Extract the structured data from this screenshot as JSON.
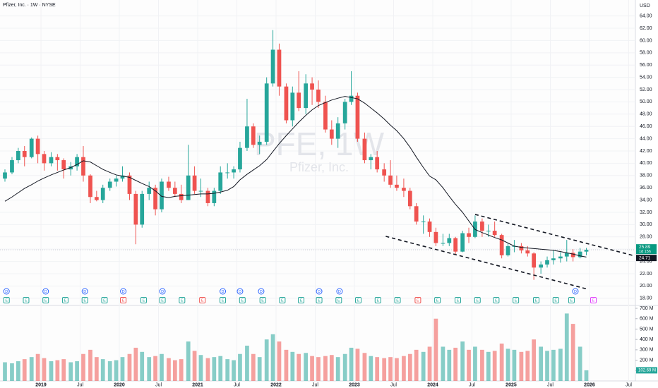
{
  "chart_data": {
    "type": "candlestick",
    "title": "Pfizer, Inc. · 1W · NYSE",
    "watermark": "PFE, 1W",
    "watermark_subtitle": "Pfizer, Inc.",
    "currency": "USD",
    "countdown": "1d 15h",
    "colors": {
      "up": "#26a69a",
      "down": "#ef5350",
      "ma": "#131722",
      "trendline": "#131722"
    },
    "grid": true,
    "xlim": [
      2018.477,
      2026.586
    ],
    "xticks": [
      {
        "value": 2019.0,
        "label": "2019"
      },
      {
        "value": 2019.5,
        "label": "Jul"
      },
      {
        "value": 2020.0,
        "label": "2020"
      },
      {
        "value": 2020.5,
        "label": "Jul"
      },
      {
        "value": 2021.0,
        "label": "2021"
      },
      {
        "value": 2021.5,
        "label": "Jul"
      },
      {
        "value": 2022.0,
        "label": "2022"
      },
      {
        "value": 2022.5,
        "label": "Jul"
      },
      {
        "value": 2023.0,
        "label": "2023"
      },
      {
        "value": 2023.5,
        "label": "Jul"
      },
      {
        "value": 2024.0,
        "label": "2024"
      },
      {
        "value": 2024.5,
        "label": "Jul"
      },
      {
        "value": 2025.0,
        "label": "2025"
      },
      {
        "value": 2025.5,
        "label": "Jul"
      },
      {
        "value": 2026.0,
        "label": "2026"
      },
      {
        "value": 2026.5,
        "label": "Jul"
      }
    ],
    "ylim": [
      16.94,
      66.6
    ],
    "yticks": [
      {
        "value": 18,
        "label": "18.00"
      },
      {
        "value": 20,
        "label": "20.00"
      },
      {
        "value": 22,
        "label": "22.00"
      },
      {
        "value": 24,
        "label": "24.00"
      },
      {
        "value": 26,
        "label": "26.00"
      },
      {
        "value": 28,
        "label": "28.00"
      },
      {
        "value": 30,
        "label": "30.00"
      },
      {
        "value": 32,
        "label": "32.00"
      },
      {
        "value": 34,
        "label": "34.00"
      },
      {
        "value": 36,
        "label": "36.00"
      },
      {
        "value": 38,
        "label": "38.00"
      },
      {
        "value": 40,
        "label": "40.00"
      },
      {
        "value": 42,
        "label": "42.00"
      },
      {
        "value": 44,
        "label": "44.00"
      },
      {
        "value": 46,
        "label": "46.00"
      },
      {
        "value": 48,
        "label": "48.00"
      },
      {
        "value": 50,
        "label": "50.00"
      },
      {
        "value": 52,
        "label": "52.00"
      },
      {
        "value": 54,
        "label": "54.00"
      },
      {
        "value": 56,
        "label": "56.00"
      },
      {
        "value": 58,
        "label": "58.00"
      },
      {
        "value": 60,
        "label": "60.00"
      },
      {
        "value": 62,
        "label": "62.00"
      },
      {
        "value": 64,
        "label": "64.00"
      }
    ],
    "x": [
      2018.54,
      2018.63,
      2018.71,
      2018.79,
      2018.88,
      2018.96,
      2019.04,
      2019.13,
      2019.21,
      2019.29,
      2019.38,
      2019.46,
      2019.54,
      2019.63,
      2019.71,
      2019.79,
      2019.88,
      2019.96,
      2020.04,
      2020.13,
      2020.21,
      2020.29,
      2020.38,
      2020.46,
      2020.54,
      2020.63,
      2020.71,
      2020.79,
      2020.88,
      2020.96,
      2021.04,
      2021.13,
      2021.21,
      2021.29,
      2021.38,
      2021.46,
      2021.54,
      2021.63,
      2021.71,
      2021.79,
      2021.88,
      2021.96,
      2022.04,
      2022.13,
      2022.21,
      2022.29,
      2022.38,
      2022.46,
      2022.54,
      2022.63,
      2022.71,
      2022.79,
      2022.88,
      2022.96,
      2023.04,
      2023.13,
      2023.21,
      2023.29,
      2023.38,
      2023.46,
      2023.54,
      2023.63,
      2023.71,
      2023.79,
      2023.88,
      2023.96,
      2024.04,
      2024.13,
      2024.21,
      2024.29,
      2024.38,
      2024.46,
      2024.54,
      2024.63,
      2024.71,
      2024.79,
      2024.88,
      2024.96,
      2025.04,
      2025.13,
      2025.21,
      2025.29,
      2025.38,
      2025.46,
      2025.54,
      2025.63,
      2025.71,
      2025.79,
      2025.88,
      2025.96
    ],
    "open": [
      37.5,
      38.5,
      40.5,
      42.0,
      41.0,
      44.0,
      41.5,
      40.0,
      41.0,
      40.5,
      39.0,
      39.5,
      41.0,
      38.0,
      34.5,
      34.0,
      36.0,
      37.0,
      37.5,
      38.0,
      35.0,
      30.0,
      35.0,
      36.0,
      32.5,
      37.0,
      36.0,
      35.0,
      34.0,
      38.0,
      35.5,
      35.5,
      33.5,
      35.5,
      38.5,
      38.5,
      39.0,
      42.5,
      46.0,
      43.0,
      43.5,
      53.0,
      58.5,
      52.5,
      47.0,
      51.5,
      49.0,
      53.0,
      52.0,
      50.0,
      45.5,
      44.0,
      46.5,
      50.0,
      51.0,
      44.0,
      40.5,
      41.0,
      39.0,
      38.0,
      36.5,
      36.0,
      35.5,
      33.0,
      30.5,
      30.5,
      28.8,
      27.0,
      27.0,
      27.8,
      25.6,
      28.6,
      28.0,
      30.5,
      29.0,
      29.0,
      28.3,
      25.0,
      26.5,
      26.5,
      25.8,
      25.3,
      23.0,
      23.5,
      24.2,
      24.5,
      24.8,
      25.4,
      24.7,
      25.6
    ],
    "high": [
      39.0,
      41.0,
      42.5,
      42.8,
      44.2,
      44.5,
      42.0,
      41.8,
      41.5,
      40.8,
      40.2,
      41.5,
      42.8,
      38.2,
      35.5,
      36.5,
      37.5,
      38.0,
      39.5,
      38.5,
      35.5,
      35.5,
      37.0,
      36.5,
      37.5,
      37.8,
      37.0,
      36.5,
      43.0,
      39.5,
      37.5,
      36.0,
      36.0,
      39.5,
      40.0,
      39.5,
      43.5,
      50.5,
      46.5,
      44.5,
      54.0,
      61.7,
      59.5,
      53.0,
      52.5,
      55.0,
      54.5,
      54.0,
      53.5,
      51.0,
      47.0,
      47.5,
      50.5,
      55.0,
      51.5,
      45.0,
      41.5,
      42.0,
      40.0,
      40.5,
      38.0,
      37.5,
      36.0,
      33.5,
      31.5,
      31.0,
      29.5,
      28.5,
      28.5,
      28.0,
      29.0,
      29.5,
      31.5,
      31.0,
      30.0,
      30.5,
      28.5,
      27.0,
      27.5,
      27.0,
      26.5,
      25.5,
      24.0,
      24.8,
      25.8,
      25.5,
      27.5,
      26.0,
      26.2,
      26.2
    ],
    "low": [
      37.0,
      38.2,
      40.0,
      39.5,
      40.8,
      40.0,
      38.8,
      39.5,
      38.8,
      37.5,
      38.0,
      38.8,
      37.0,
      33.5,
      33.8,
      33.5,
      35.5,
      36.2,
      37.0,
      34.0,
      26.8,
      29.5,
      34.0,
      31.5,
      32.0,
      35.5,
      34.5,
      33.5,
      34.0,
      35.0,
      34.5,
      33.0,
      33.0,
      35.0,
      37.5,
      37.5,
      38.5,
      42.0,
      42.5,
      41.5,
      43.0,
      52.5,
      51.0,
      46.5,
      46.0,
      48.5,
      48.0,
      49.5,
      49.0,
      45.0,
      43.0,
      42.5,
      45.5,
      49.5,
      43.5,
      40.0,
      39.0,
      38.5,
      37.0,
      36.0,
      35.5,
      34.5,
      32.5,
      30.0,
      28.5,
      28.0,
      26.5,
      26.5,
      26.5,
      25.2,
      25.5,
      27.0,
      27.8,
      28.0,
      28.0,
      28.0,
      24.5,
      24.8,
      25.5,
      25.3,
      24.8,
      21.0,
      22.0,
      23.0,
      23.5,
      23.8,
      24.0,
      24.0,
      24.5,
      25.0
    ],
    "close": [
      38.5,
      40.5,
      42.0,
      41.0,
      44.0,
      41.5,
      40.0,
      41.0,
      40.5,
      39.0,
      39.5,
      41.0,
      38.0,
      34.5,
      34.0,
      36.0,
      37.0,
      37.5,
      38.0,
      35.0,
      30.0,
      35.0,
      36.0,
      32.5,
      37.0,
      36.0,
      35.0,
      34.0,
      38.0,
      35.5,
      35.5,
      33.5,
      35.5,
      38.5,
      38.5,
      39.0,
      42.5,
      46.0,
      43.0,
      43.5,
      53.0,
      58.5,
      52.5,
      47.0,
      51.5,
      49.0,
      53.0,
      52.0,
      50.0,
      45.5,
      44.0,
      46.5,
      50.0,
      51.0,
      44.0,
      40.5,
      41.0,
      39.0,
      38.0,
      36.5,
      36.0,
      35.5,
      33.0,
      30.5,
      30.5,
      28.8,
      27.0,
      27.0,
      27.8,
      25.6,
      28.6,
      28.0,
      30.5,
      29.0,
      29.0,
      28.3,
      25.0,
      26.5,
      26.5,
      25.8,
      25.3,
      23.0,
      23.5,
      24.2,
      24.5,
      24.8,
      25.4,
      24.7,
      25.6,
      25.89
    ],
    "ma": [
      33.8,
      34.5,
      35.2,
      35.9,
      36.5,
      37.1,
      37.6,
      38.1,
      38.5,
      38.9,
      39.3,
      39.8,
      40.4,
      40.2,
      39.6,
      39.0,
      38.5,
      38.1,
      37.9,
      37.7,
      37.2,
      36.7,
      36.2,
      35.5,
      34.6,
      34.4,
      34.6,
      34.7,
      34.8,
      34.9,
      35.0,
      35.0,
      35.1,
      35.3,
      35.6,
      36.2,
      37.3,
      38.2,
      38.9,
      39.6,
      40.6,
      41.9,
      43.2,
      44.5,
      45.6,
      46.7,
      47.8,
      48.7,
      49.4,
      49.9,
      50.3,
      50.6,
      50.9,
      50.7,
      50.5,
      49.8,
      49.0,
      48.2,
      47.2,
      46.2,
      45.3,
      44.0,
      42.6,
      41.0,
      39.3,
      37.9,
      37.3,
      36.0,
      34.6,
      33.3,
      32.0,
      30.6,
      29.2,
      28.7,
      28.3,
      27.9,
      27.5,
      27.0,
      26.5,
      26.3,
      26.2,
      26.1,
      26.0,
      25.9,
      25.8,
      25.6,
      25.4,
      25.2,
      24.9,
      24.71
    ],
    "trendlines": [
      {
        "x": [
          2024.54,
          2026.55
        ],
        "y": [
          31.66,
          24.99
        ]
      },
      {
        "x": [
          2023.4,
          2025.98
        ],
        "y": [
          28.09,
          19.47
        ]
      }
    ],
    "volume": {
      "values": [
        180,
        170,
        190,
        210,
        230,
        260,
        220,
        190,
        200,
        210,
        180,
        190,
        260,
        300,
        230,
        210,
        190,
        200,
        230,
        260,
        320,
        280,
        230,
        240,
        260,
        220,
        200,
        210,
        380,
        290,
        250,
        220,
        230,
        240,
        210,
        200,
        260,
        340,
        260,
        230,
        400,
        450,
        380,
        300,
        280,
        260,
        270,
        240,
        230,
        240,
        250,
        230,
        260,
        320,
        310,
        270,
        240,
        230,
        220,
        230,
        220,
        240,
        260,
        300,
        280,
        330,
        600,
        330,
        300,
        320,
        380,
        300,
        330,
        300,
        280,
        290,
        360,
        310,
        300,
        280,
        290,
        400,
        330,
        290,
        300,
        310,
        650,
        550,
        330,
        102.69
      ],
      "ylim": [
        0,
        707
      ],
      "yticks": [
        {
          "value": 100,
          "label": "100 M"
        },
        {
          "value": 200,
          "label": "200 M"
        },
        {
          "value": 300,
          "label": "300 M"
        },
        {
          "value": 400,
          "label": "400 M"
        },
        {
          "value": 500,
          "label": "500 M"
        },
        {
          "value": 600,
          "label": "600 M"
        },
        {
          "value": 700,
          "label": "700 M"
        }
      ],
      "last_label": "102.69 M"
    },
    "events": {
      "dividend_label": "D",
      "earnings_label": "E",
      "dividend_color": "#2962ff",
      "dividends": [
        2018.56,
        2019.06,
        2019.56,
        2020.05,
        2020.55,
        2021.32,
        2021.54,
        2021.81,
        2022.55,
        2022.81,
        2025.82
      ],
      "earnings": [
        2018.56,
        2018.81,
        2019.06,
        2019.31,
        2019.56,
        2019.81,
        2020.05,
        2020.31,
        2020.55,
        2020.8,
        2021.06,
        2021.32,
        2021.57,
        2021.83,
        2022.08,
        2022.32,
        2022.55,
        2022.8,
        2023.05,
        2023.3,
        2023.55,
        2023.81,
        2024.06,
        2024.32,
        2024.57,
        2024.81,
        2025.06,
        2025.32,
        2025.57,
        2025.77,
        2026.05
      ],
      "earnings_colors": [
        "#26a69a",
        "#26a69a",
        "#26a69a",
        "#26a69a",
        "#26a69a",
        "#26a69a",
        "#ef5350",
        "#26a69a",
        "#26a69a",
        "#26a69a",
        "#ef5350",
        "#26a69a",
        "#26a69a",
        "#26a69a",
        "#26a69a",
        "#26a69a",
        "#26a69a",
        "#26a69a",
        "#26a69a",
        "#26a69a",
        "#26a69a",
        "#ef5350",
        "#26a69a",
        "#26a69a",
        "#26a69a",
        "#26a69a",
        "#26a69a",
        "#26a69a",
        "#26a69a",
        "#26a69a",
        "#e040fb"
      ]
    }
  }
}
